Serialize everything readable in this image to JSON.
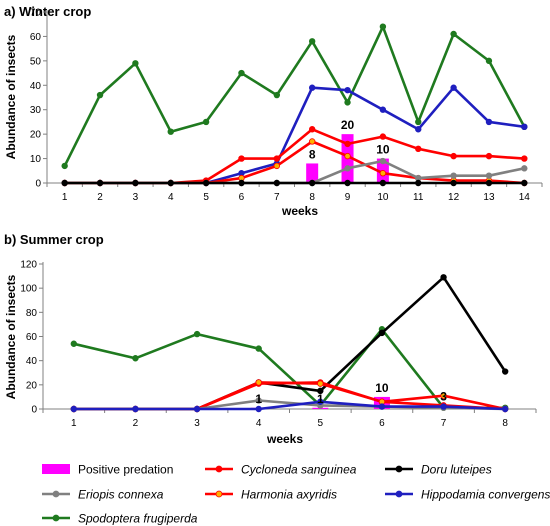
{
  "figure": {
    "legend": [
      {
        "key": "predation",
        "label": "Positive predation",
        "italic": false
      },
      {
        "key": "cs",
        "label": "Cycloneda sanguinea",
        "italic": true
      },
      {
        "key": "dl",
        "label": "Doru luteipes",
        "italic": true
      },
      {
        "key": "ec",
        "label": "Eriopis connexa",
        "italic": true
      },
      {
        "key": "ha",
        "label": "Harmonia axyridis",
        "italic": true
      },
      {
        "key": "hc",
        "label": "Hippodamia convergens",
        "italic": true
      },
      {
        "key": "sf",
        "label": "Spodoptera frugiperda",
        "italic": true
      }
    ],
    "styles": {
      "predation": {
        "color": "#ff00ff"
      },
      "cs": {
        "color": "#ff0000",
        "marker": "#ff0000"
      },
      "dl": {
        "color": "#000000",
        "marker": "#000000"
      },
      "ec": {
        "color": "#808080",
        "marker": "#808080"
      },
      "ha": {
        "color": "#ff0000",
        "marker": "#ffb000"
      },
      "hc": {
        "color": "#1f1fbf",
        "marker": "#1f1fbf"
      },
      "sf": {
        "color": "#1f7a1f",
        "marker": "#1f7a1f"
      }
    }
  },
  "chart_data": [
    {
      "type": "line",
      "title": "a) Winter crop",
      "xlabel": "weeks",
      "ylabel": "Abundance of insects",
      "x": [
        1,
        2,
        3,
        4,
        5,
        6,
        7,
        8,
        9,
        10,
        11,
        12,
        13,
        14
      ],
      "ylim": [
        0,
        70
      ],
      "yticks": [
        0,
        10,
        20,
        30,
        40,
        50,
        60,
        70
      ],
      "series": [
        {
          "key": "sf",
          "name": "Spodoptera frugiperda",
          "values": [
            7,
            36,
            49,
            21,
            25,
            45,
            36,
            58,
            33,
            64,
            25,
            61,
            50,
            23
          ]
        },
        {
          "key": "hc",
          "name": "Hippodamia convergens",
          "values": [
            0,
            0,
            0,
            0,
            0,
            4,
            8,
            39,
            38,
            30,
            22,
            39,
            25,
            23
          ]
        },
        {
          "key": "cs",
          "name": "Cycloneda sanguinea",
          "values": [
            0,
            0,
            0,
            0,
            1,
            10,
            10,
            22,
            16,
            19,
            14,
            11,
            11,
            10
          ]
        },
        {
          "key": "ha",
          "name": "Harmonia axyridis",
          "values": [
            0,
            0,
            0,
            0,
            0,
            2,
            7,
            17,
            11,
            4,
            2,
            1,
            1,
            0
          ]
        },
        {
          "key": "ec",
          "name": "Eriopis connexa",
          "values": [
            0,
            0,
            0,
            0,
            0,
            0,
            0,
            0,
            6,
            9,
            2,
            3,
            3,
            6
          ]
        },
        {
          "key": "dl",
          "name": "Doru luteipes",
          "values": [
            0,
            0,
            0,
            0,
            0,
            0,
            0,
            0,
            0,
            0,
            0,
            0,
            0,
            0
          ]
        }
      ],
      "predation_bars": [
        {
          "x": 8,
          "value": 8,
          "label": "8"
        },
        {
          "x": 9,
          "value": 20,
          "label": "20"
        },
        {
          "x": 10,
          "value": 10,
          "label": "10"
        }
      ]
    },
    {
      "type": "line",
      "title": "b) Summer crop",
      "xlabel": "weeks",
      "ylabel": "Abundance of insects",
      "x": [
        1,
        2,
        3,
        4,
        5,
        6,
        7,
        8
      ],
      "ylim": [
        0,
        120
      ],
      "yticks": [
        0,
        20,
        40,
        60,
        80,
        100,
        120
      ],
      "series": [
        {
          "key": "sf",
          "name": "Spodoptera frugiperda",
          "values": [
            54,
            42,
            62,
            50,
            3,
            66,
            1,
            1
          ]
        },
        {
          "key": "dl",
          "name": "Doru luteipes",
          "values": [
            0,
            0,
            0,
            22,
            15,
            63,
            109,
            31
          ]
        },
        {
          "key": "cs",
          "name": "Cycloneda sanguinea",
          "values": [
            0,
            0,
            0,
            21,
            22,
            6,
            3,
            0
          ]
        },
        {
          "key": "ha",
          "name": "Harmonia axyridis",
          "values": [
            0,
            0,
            0,
            22,
            21,
            6,
            11,
            0
          ]
        },
        {
          "key": "ec",
          "name": "Eriopis connexa",
          "values": [
            0,
            0,
            0,
            7,
            3,
            2,
            1,
            0
          ]
        },
        {
          "key": "hc",
          "name": "Hippodamia convergens",
          "values": [
            0,
            0,
            0,
            0,
            6,
            2,
            2,
            0
          ]
        }
      ],
      "predation_bars": [
        {
          "x": 4,
          "value": 1,
          "label": "1"
        },
        {
          "x": 5,
          "value": 1,
          "label": "1"
        },
        {
          "x": 6,
          "value": 10,
          "label": "10"
        },
        {
          "x": 7,
          "value": 3,
          "label": "3"
        }
      ]
    }
  ]
}
